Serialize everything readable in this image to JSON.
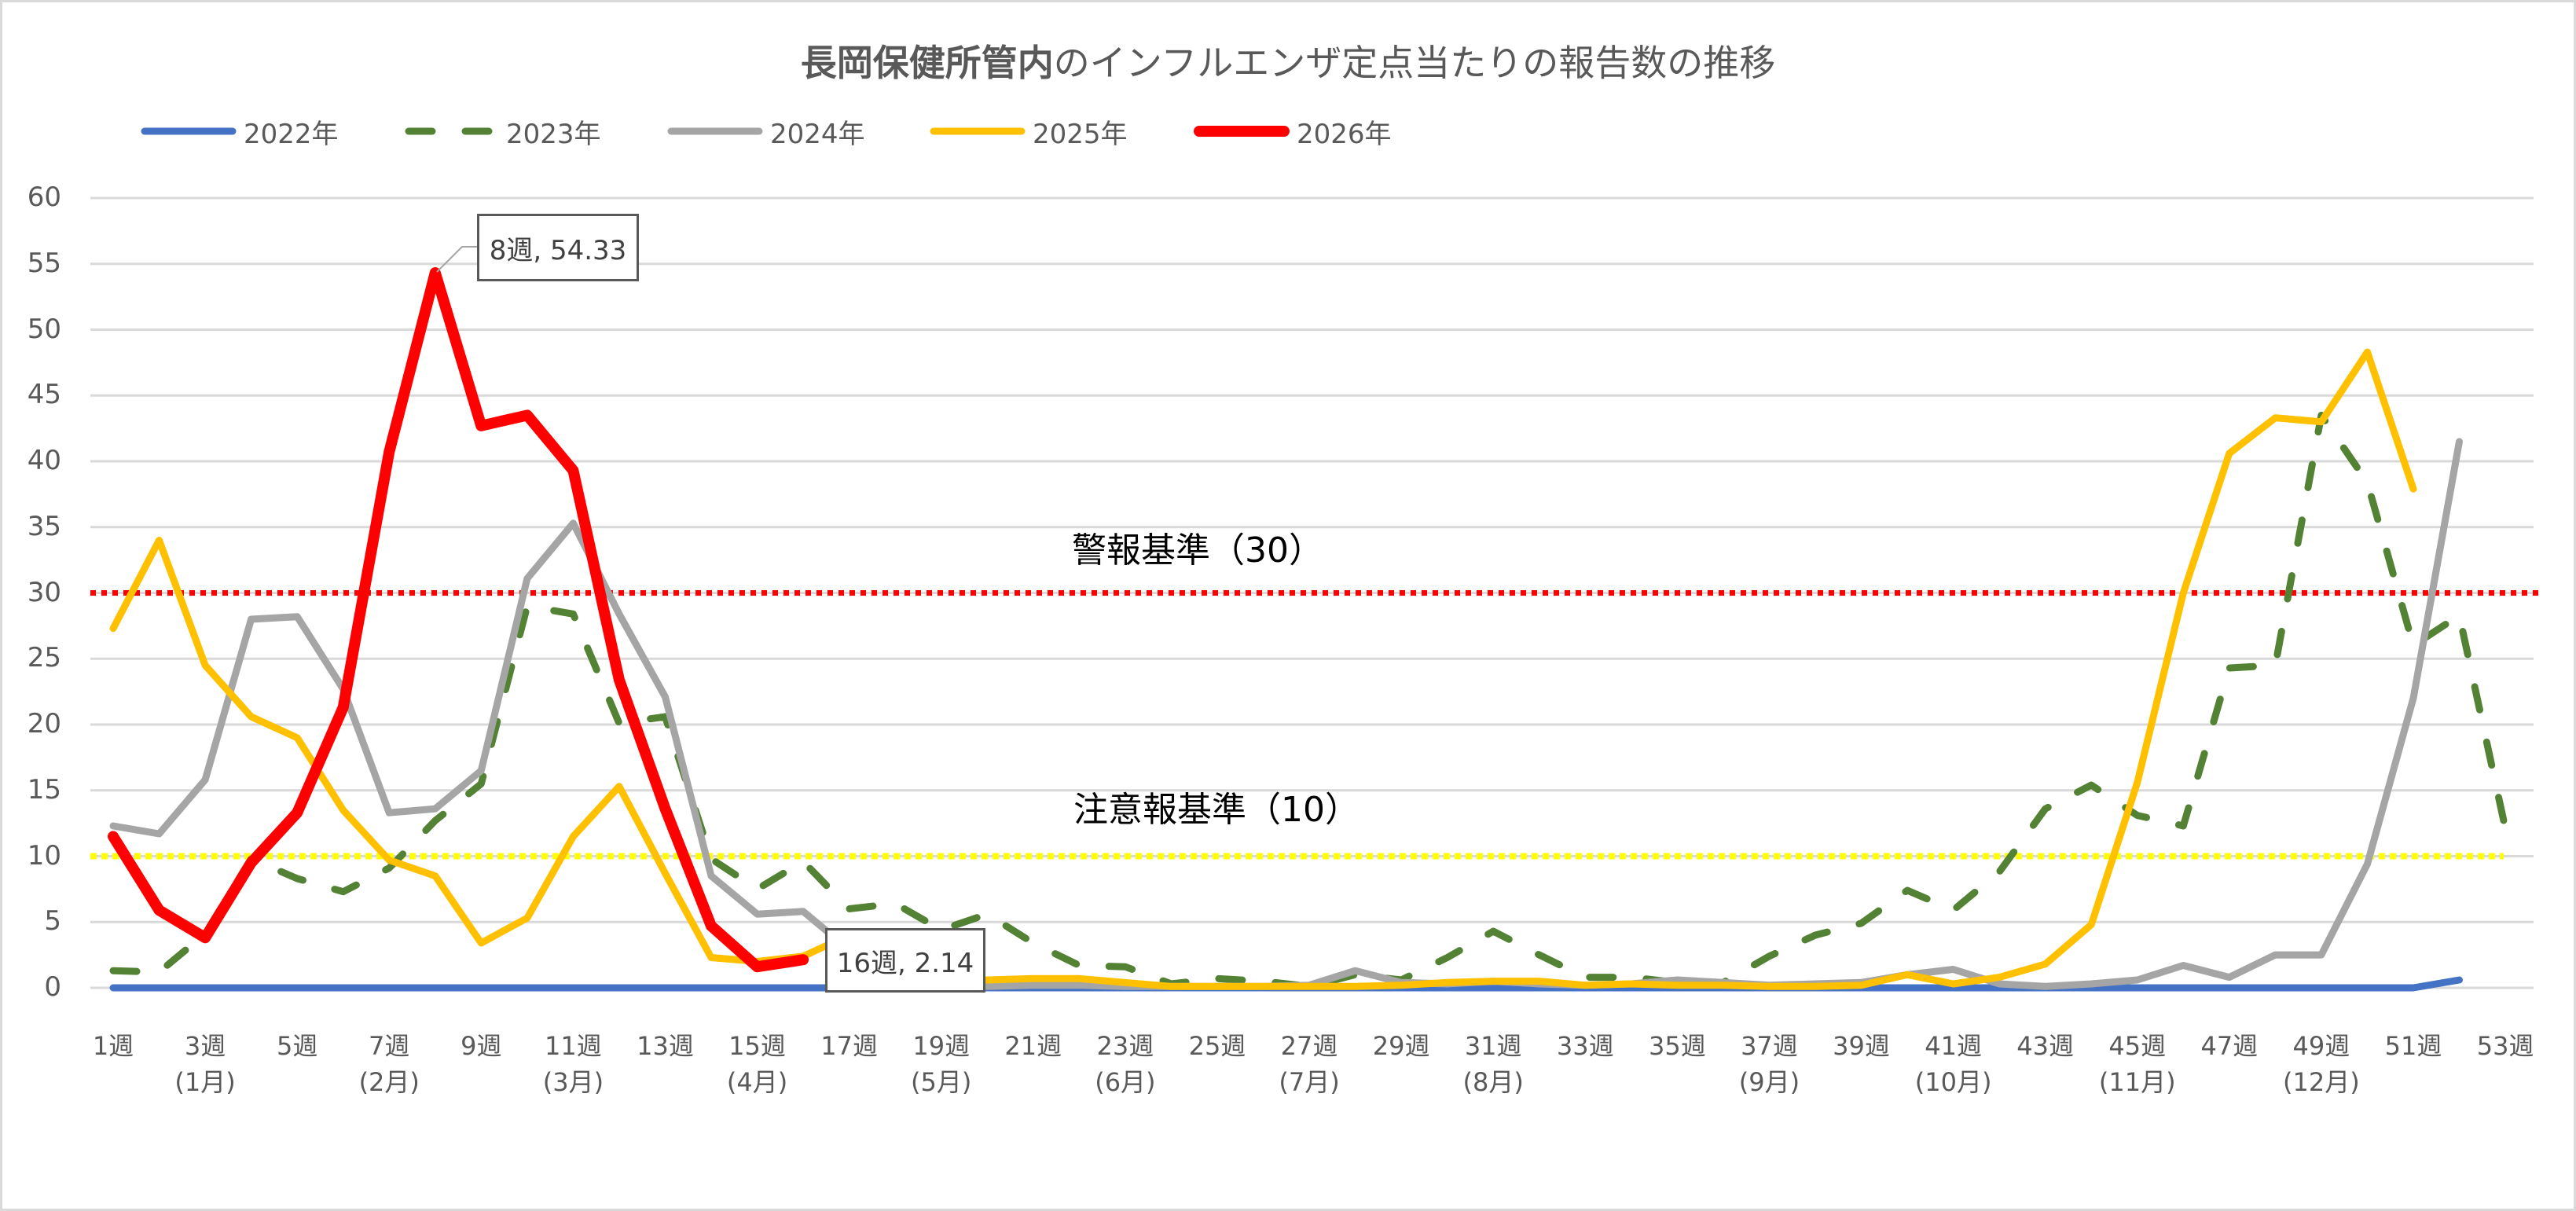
{
  "title": {
    "bold": "長岡保健所管内",
    "normal": "のインフルエンザ定点当たりの報告数の推移"
  },
  "legend": [
    {
      "label": "2022年",
      "color": "#4472c4",
      "dash": "solid"
    },
    {
      "label": "2023年",
      "color": "#548235",
      "dash": "dashed"
    },
    {
      "label": "2024年",
      "color": "#a5a5a5",
      "dash": "solid"
    },
    {
      "label": "2025年",
      "color": "#ffc000",
      "dash": "solid"
    },
    {
      "label": "2026年",
      "color": "#ff0000",
      "dash": "solid"
    }
  ],
  "thresholds": {
    "warning": {
      "label": "警報基準（30）",
      "value": 30,
      "color": "#ff0000"
    },
    "advisory": {
      "label": "注意報基準（10）",
      "value": 10,
      "color": "#ffff00"
    }
  },
  "callouts": [
    {
      "label": "8週, 54.33",
      "week": 8,
      "value": 54.33
    },
    {
      "label": "16週, 2.14",
      "week": 16,
      "value": 2.14
    }
  ],
  "y_ticks": [
    "0",
    "5",
    "10",
    "15",
    "20",
    "25",
    "30",
    "35",
    "40",
    "45",
    "50",
    "55",
    "60"
  ],
  "x_ticks": [
    "1週",
    "3週",
    "5週",
    "7週",
    "9週",
    "11週",
    "13週",
    "15週",
    "17週",
    "19週",
    "21週",
    "23週",
    "25週",
    "27週",
    "29週",
    "31週",
    "33週",
    "35週",
    "37週",
    "39週",
    "41週",
    "43週",
    "45週",
    "47週",
    "49週",
    "51週",
    "53週"
  ],
  "month_labels": [
    {
      "label": "(1月)",
      "week": 3
    },
    {
      "label": "(2月)",
      "week": 7
    },
    {
      "label": "(3月)",
      "week": 11
    },
    {
      "label": "(4月)",
      "week": 15
    },
    {
      "label": "(5月)",
      "week": 19
    },
    {
      "label": "(6月)",
      "week": 23
    },
    {
      "label": "(7月)",
      "week": 27
    },
    {
      "label": "(8月)",
      "week": 31
    },
    {
      "label": "(9月)",
      "week": 37
    },
    {
      "label": "(10月)",
      "week": 41
    },
    {
      "label": "(11月)",
      "week": 45
    },
    {
      "label": "(12月)",
      "week": 49
    }
  ],
  "chart_data": {
    "type": "line",
    "title": "長岡保健所管内のインフルエンザ定点当たりの報告数の推移",
    "xlabel": "",
    "ylabel": "",
    "ylim": [
      0,
      60
    ],
    "y_tick_step": 5,
    "grid": true,
    "legend_position": "top-left",
    "x": [
      1,
      2,
      3,
      4,
      5,
      6,
      7,
      8,
      9,
      10,
      11,
      12,
      13,
      14,
      15,
      16,
      17,
      18,
      19,
      20,
      21,
      22,
      23,
      24,
      25,
      26,
      27,
      28,
      29,
      30,
      31,
      32,
      33,
      34,
      35,
      36,
      37,
      38,
      39,
      40,
      41,
      42,
      43,
      44,
      45,
      46,
      47,
      48,
      49,
      50,
      51,
      52,
      53
    ],
    "x_unit": "週",
    "series": [
      {
        "name": "2022年",
        "color": "#4472c4",
        "dash": "solid",
        "width": 9,
        "values": [
          0,
          0,
          0,
          0,
          0,
          0,
          0,
          0,
          0,
          0,
          0,
          0,
          0,
          0,
          0,
          0,
          0,
          0,
          0,
          0,
          0,
          0,
          0,
          0,
          0,
          0,
          0,
          0,
          0,
          0,
          0,
          0,
          0,
          0,
          0,
          0,
          0,
          0,
          0,
          0,
          0,
          0,
          0,
          0,
          0,
          0,
          0,
          0,
          0,
          0,
          0,
          0.6
        ]
      },
      {
        "name": "2023年",
        "color": "#548235",
        "dash": "dashed",
        "width": 9,
        "values": [
          1.3,
          1.2,
          4.1,
          9.8,
          8.3,
          7.3,
          9.1,
          12.7,
          15.5,
          29.0,
          28.4,
          20.1,
          20.6,
          9.8,
          7.5,
          9.6,
          6.0,
          6.4,
          4.4,
          5.6,
          3.4,
          1.7,
          1.6,
          0.3,
          0.7,
          0.5,
          0.1,
          1.0,
          0.6,
          2.3,
          4.3,
          2.5,
          0.8,
          0.8,
          0.4,
          0.4,
          2.4,
          4.0,
          4.9,
          7.4,
          5.9,
          8.8,
          13.6,
          15.4,
          13.1,
          12.3,
          24.3,
          24.5,
          43.5,
          38.4,
          26.0,
          28.3,
          12.1
        ]
      },
      {
        "name": "2024年",
        "color": "#a5a5a5",
        "dash": "solid",
        "width": 9,
        "values": [
          12.3,
          11.7,
          15.8,
          28.0,
          28.2,
          22.7,
          13.3,
          13.6,
          16.5,
          31.1,
          35.3,
          28.4,
          22.1,
          8.5,
          5.6,
          5.8,
          2.9,
          0.9,
          0.2,
          0.1,
          0.2,
          0.2,
          0.1,
          0.1,
          0.1,
          0.1,
          0.2,
          1.3,
          0.4,
          0.3,
          0.5,
          0.3,
          0.2,
          0.3,
          0.6,
          0.4,
          0.2,
          0.3,
          0.4,
          1.0,
          1.4,
          0.3,
          0.1,
          0.3,
          0.6,
          1.7,
          0.8,
          2.5,
          2.5,
          9.4,
          22.0,
          41.5
        ]
      },
      {
        "name": "2025年",
        "color": "#ffc000",
        "dash": "solid",
        "width": 9,
        "values": [
          27.3,
          34.0,
          24.5,
          20.6,
          19.0,
          13.5,
          9.7,
          8.5,
          3.4,
          5.3,
          11.5,
          15.3,
          8.7,
          2.3,
          2.0,
          2.4,
          4.0,
          1.5,
          0.4,
          0.6,
          0.7,
          0.7,
          0.4,
          0.1,
          0.1,
          0.1,
          0.1,
          0.1,
          0.2,
          0.4,
          0.5,
          0.5,
          0.2,
          0.3,
          0.2,
          0.2,
          0.1,
          0.1,
          0.2,
          1.0,
          0.3,
          0.8,
          1.8,
          4.8,
          15.6,
          30.0,
          40.6,
          43.3,
          43.0,
          48.3,
          37.9
        ]
      },
      {
        "name": "2026年",
        "color": "#ff0000",
        "dash": "solid",
        "width": 14,
        "values": [
          11.5,
          5.9,
          3.8,
          9.5,
          13.3,
          21.3,
          40.7,
          54.33,
          42.7,
          43.5,
          39.3,
          23.4,
          13.6,
          4.7,
          1.6,
          2.14
        ]
      }
    ],
    "reference_lines": [
      {
        "name": "警報基準（30）",
        "value": 30,
        "color": "#ff0000",
        "style": "dotted"
      },
      {
        "name": "注意報基準（10）",
        "value": 10,
        "color": "#ffff00",
        "style": "dotted"
      }
    ],
    "annotations": [
      {
        "text": "8週, 54.33",
        "x": 8,
        "y": 54.33
      },
      {
        "text": "16週, 2.14",
        "x": 16,
        "y": 2.14
      },
      {
        "text": "警報基準（30）",
        "near_y": 30
      },
      {
        "text": "注意報基準（10）",
        "near_y": 10
      }
    ]
  }
}
